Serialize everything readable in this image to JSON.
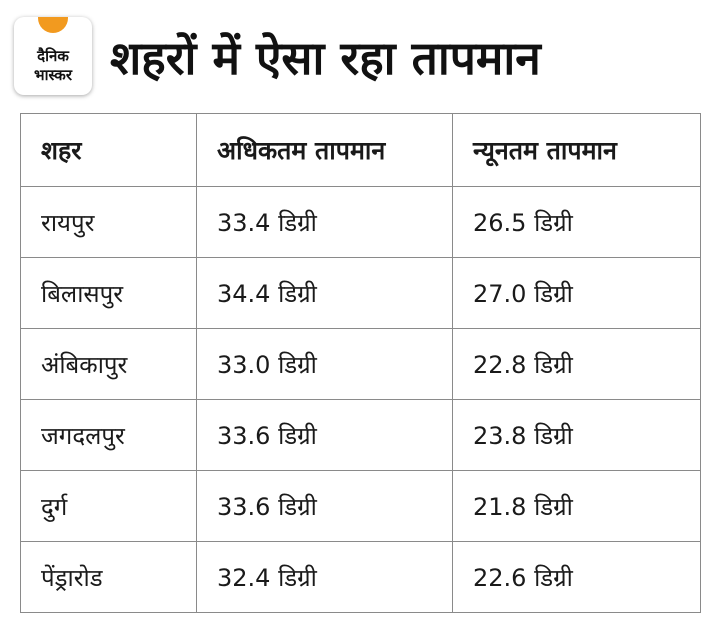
{
  "logo": {
    "line1": "दैनिक",
    "line2": "भास्कर",
    "accent_color": "#f29a1f"
  },
  "title": "शहरों में ऐसा रहा तापमान",
  "table": {
    "headers": [
      "शहर",
      "अधिकतम तापमान",
      "न्यूनतम तापमान"
    ],
    "rows": [
      [
        "रायपुर",
        "33.4 डिग्री",
        "26.5 डिग्री"
      ],
      [
        "बिलासपुर",
        "34.4 डिग्री",
        "27.0 डिग्री"
      ],
      [
        "अंबिकापुर",
        "33.0 डिग्री",
        "22.8 डिग्री"
      ],
      [
        "जगदलपुर",
        "33.6 डिग्री",
        "23.8 डिग्री"
      ],
      [
        "दुर्ग",
        "33.6 डिग्री",
        "21.8 डिग्री"
      ],
      [
        "पेंड्रारोड",
        "32.4 डिग्री",
        "22.6 डिग्री"
      ]
    ]
  }
}
